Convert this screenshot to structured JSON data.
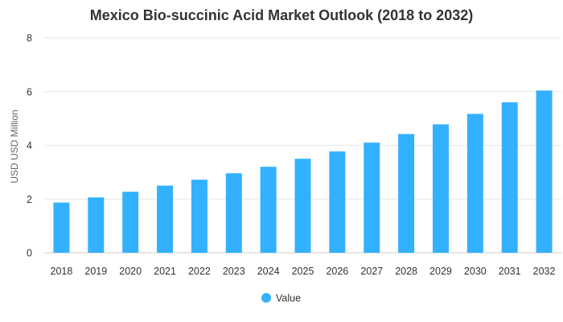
{
  "chart_data": {
    "type": "bar",
    "title": "Mexico Bio-succinic Acid Market Outlook (2018 to 2032)",
    "xlabel": "",
    "ylabel": "USD USD Million",
    "categories": [
      "2018",
      "2019",
      "2020",
      "2021",
      "2022",
      "2023",
      "2024",
      "2025",
      "2026",
      "2027",
      "2028",
      "2029",
      "2030",
      "2031",
      "2032"
    ],
    "series": [
      {
        "name": "Value",
        "values": [
          1.87,
          2.06,
          2.27,
          2.5,
          2.72,
          2.96,
          3.2,
          3.5,
          3.77,
          4.1,
          4.42,
          4.78,
          5.17,
          5.6,
          6.04
        ]
      }
    ],
    "ylim": [
      0,
      8
    ],
    "yticks": [
      "0",
      "2",
      "4",
      "6",
      "8"
    ],
    "grid": true,
    "legend_position": "bottom-center",
    "colors": {
      "bar": "#33b1ff",
      "grid": "#e6e6e6",
      "axis": "#cccccc"
    }
  }
}
